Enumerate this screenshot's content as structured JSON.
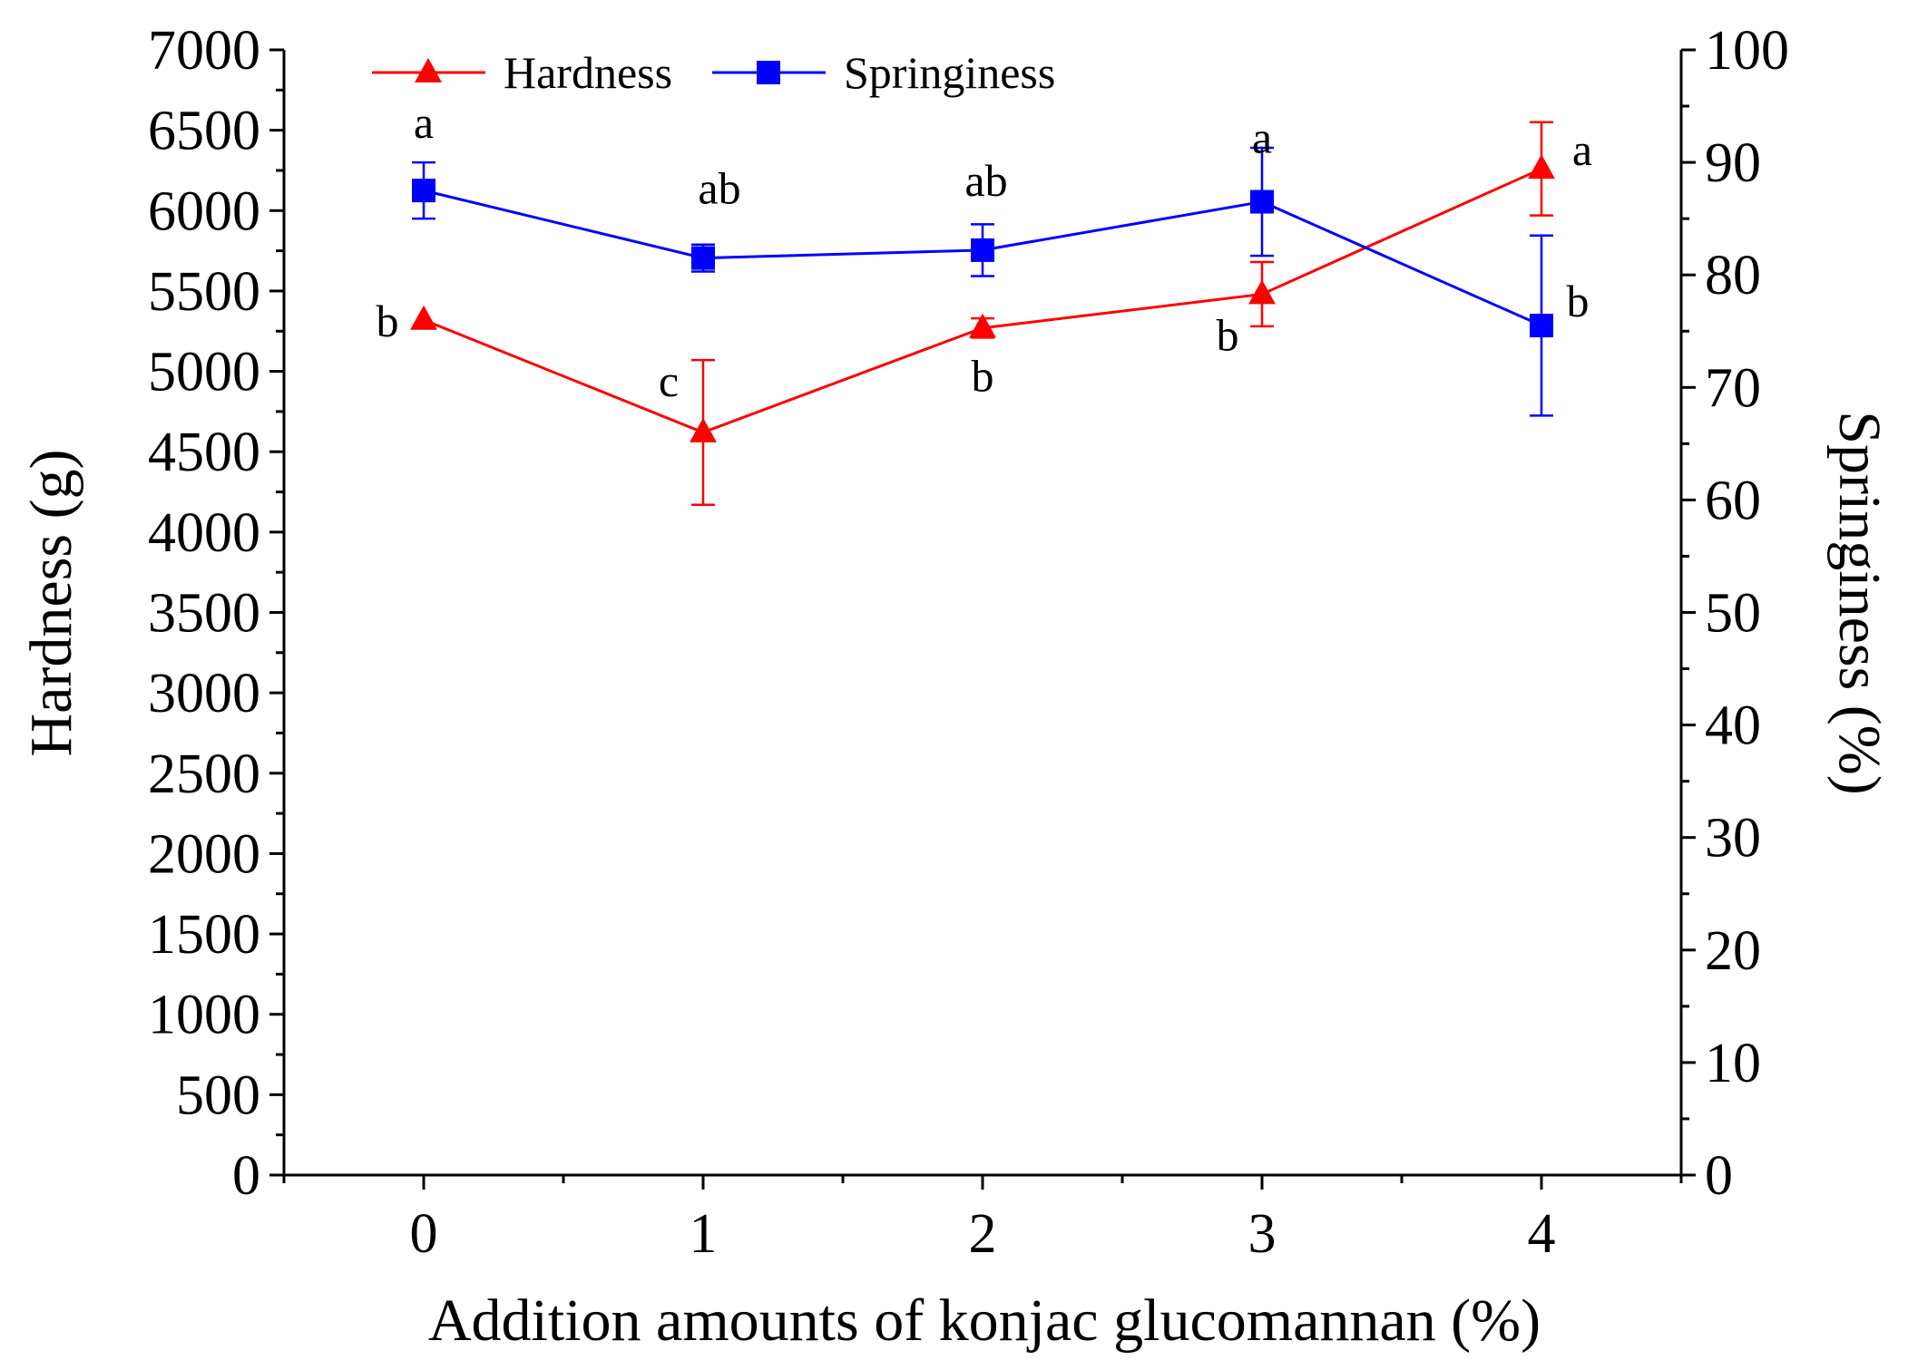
{
  "chart_data": {
    "type": "line",
    "title": "",
    "xlabel": "Addition amounts of konjac glucomannan (%)",
    "ylabel_left": "Hardness (g)",
    "ylabel_right": "Springiness (%)",
    "x": [
      0,
      1,
      2,
      3,
      4
    ],
    "x_ticks": [
      "0",
      "1",
      "2",
      "3",
      "4"
    ],
    "xlim": [
      -0.5,
      4.5
    ],
    "ylim_left": [
      0,
      7000
    ],
    "ylim_right": [
      0,
      100
    ],
    "y_ticks_left": [
      "0",
      "500",
      "1000",
      "1500",
      "2000",
      "2500",
      "3000",
      "3500",
      "4000",
      "4500",
      "5000",
      "5500",
      "6000",
      "6500",
      "7000"
    ],
    "y_ticks_right": [
      "0",
      "10",
      "20",
      "30",
      "40",
      "50",
      "60",
      "70",
      "80",
      "90",
      "100"
    ],
    "legend_position": "top-left",
    "grid": false,
    "series": [
      {
        "name": "Hardness",
        "axis": "left",
        "color": "#ff0000",
        "marker": "triangle",
        "values": [
          5320,
          4620,
          5270,
          5480,
          6260
        ],
        "errors": [
          0,
          450,
          60,
          200,
          290
        ],
        "labels": [
          "b",
          "c",
          "b",
          "b",
          "a"
        ]
      },
      {
        "name": "Springiness",
        "axis": "right",
        "color": "#0000ff",
        "marker": "square",
        "values": [
          87.5,
          81.5,
          82.2,
          86.5,
          75.5
        ],
        "errors": [
          2.5,
          1.2,
          2.3,
          4.8,
          8.0
        ],
        "labels": [
          "a",
          "ab",
          "ab",
          "a",
          "b"
        ]
      }
    ]
  }
}
